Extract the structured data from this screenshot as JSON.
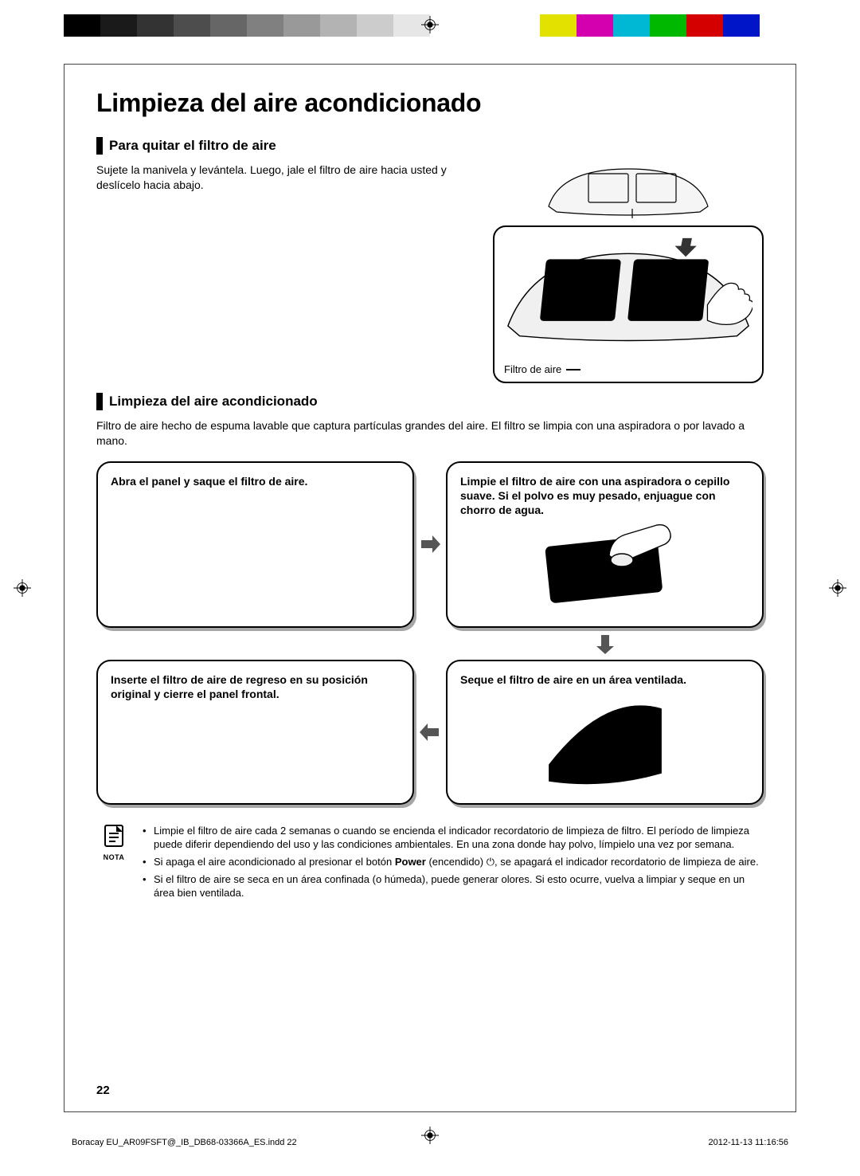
{
  "print_marks": {
    "color_bar": [
      "#000000",
      "#1a1a1a",
      "#333333",
      "#4d4d4d",
      "#666666",
      "#808080",
      "#999999",
      "#b3b3b3",
      "#cccccc",
      "#e6e6e6",
      "#ffffff",
      "#ffffff",
      "#ffffff",
      "#e3e100",
      "#d400b0",
      "#00b7d4",
      "#00b800",
      "#d40000",
      "#0014c8",
      "#ffffff"
    ],
    "reg_mark_stroke": "#000000"
  },
  "title": "Limpieza del aire acondicionado",
  "section1": {
    "heading": "Para quitar el filtro de aire",
    "body": "Sujete la manivela y levántela. Luego, jale el filtro de aire hacia usted y deslícelo hacia abajo.",
    "filter_label": "Filtro de aire"
  },
  "section2": {
    "heading": "Limpieza del aire acondicionado",
    "intro": "Filtro de aire hecho de espuma lavable que captura partículas grandes del aire. El filtro se limpia con una aspiradora o por lavado a mano."
  },
  "steps": {
    "s1": "Abra el panel y saque el filtro de aire.",
    "s2": "Limpie el filtro de aire con una aspiradora o cepillo suave. Si el polvo es muy pesado, enjuague con chorro de agua.",
    "s3": "Seque el filtro de aire en un área ventilada.",
    "s4": "Inserte el filtro de aire de regreso en su posición original y cierre el panel frontal."
  },
  "note": {
    "label": "NOTA",
    "items": [
      "Limpie el filtro de aire cada 2 semanas o cuando se encienda el indicador recordatorio de limpieza de filtro. El período de limpieza puede diferir dependiendo del uso y las condiciones ambientales. En una zona donde hay polvo, límpielo una vez por semana.",
      "Si apaga el aire acondicionado al presionar el botón <b>Power</b> (encendido) ⏻, se apagará el indicador recordatorio de limpieza de aire.",
      "Si el filtro de aire se seca en un área confinada (o húmeda), puede generar olores. Si esto ocurre, vuelva a limpiar y seque en un área bien ventilada."
    ]
  },
  "page_number": "22",
  "footer": {
    "left": "Boracay EU_AR09FSFT@_IB_DB68-03366A_ES.indd   22",
    "right": "2012-11-13   11:16:56"
  },
  "style": {
    "title_fontsize": 32,
    "heading_fontsize": 17,
    "body_fontsize": 14,
    "step_border_radius": 18,
    "step_shadow": "3px 4px 0 rgba(0,0,0,0.35)",
    "accent_bar_color": "#000000",
    "box_border": "#000000"
  }
}
